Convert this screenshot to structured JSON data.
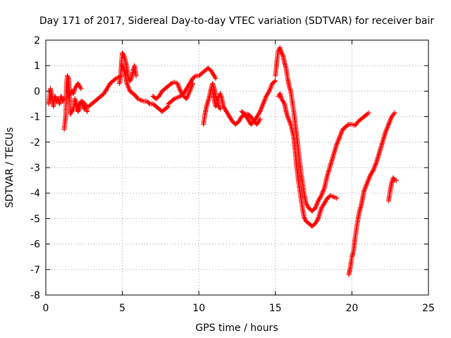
{
  "chart_data": {
    "type": "scatter",
    "title": "Day 171 of 2017, Sidereal Day-to-day VTEC variation (SDTVAR) for receiver bair",
    "xlabel": "GPS time / hours",
    "ylabel": "SDTVAR / TECUs",
    "xlim": [
      0,
      25
    ],
    "ylim": [
      -8,
      2
    ],
    "x_ticks": [
      0,
      5,
      10,
      15,
      20,
      25
    ],
    "y_ticks": [
      2,
      1,
      0,
      -1,
      -2,
      -3,
      -4,
      -5,
      -6,
      -7,
      -8
    ],
    "x_tick_labels": [
      "0",
      "5",
      "10",
      "15",
      "20",
      "25"
    ],
    "y_tick_labels": [
      "2",
      "1",
      "0",
      "-1",
      "-2",
      "-3",
      "-4",
      "-5",
      "-6",
      "-7",
      "-8"
    ],
    "grid": true,
    "legend": "none",
    "marker": "+",
    "color": "#ff0000",
    "segments": [
      [
        [
          0.2,
          -0.5
        ],
        [
          0.3,
          0.1
        ],
        [
          0.4,
          -0.2
        ],
        [
          0.5,
          -0.6
        ],
        [
          0.6,
          -0.2
        ],
        [
          0.7,
          -0.4
        ],
        [
          0.8,
          -0.3
        ],
        [
          0.9,
          -0.5
        ],
        [
          1.0,
          -0.2
        ],
        [
          1.1,
          -0.4
        ],
        [
          1.2,
          -0.3
        ]
      ],
      [
        [
          1.2,
          -1.5
        ],
        [
          1.3,
          -1.0
        ],
        [
          1.35,
          0.2
        ],
        [
          1.4,
          0.6
        ],
        [
          1.5,
          0.5
        ],
        [
          1.55,
          -0.2
        ],
        [
          1.6,
          -0.9
        ],
        [
          1.7,
          -0.8
        ],
        [
          1.8,
          -0.7
        ],
        [
          1.9,
          -0.3
        ],
        [
          2.0,
          -0.5
        ],
        [
          2.1,
          -0.8
        ],
        [
          2.2,
          -0.7
        ],
        [
          2.3,
          -0.4
        ],
        [
          2.4,
          -0.5
        ],
        [
          2.5,
          -0.7
        ],
        [
          2.6,
          -0.6
        ],
        [
          2.7,
          -0.8
        ]
      ],
      [
        [
          1.5,
          -0.2
        ],
        [
          1.6,
          -0.1
        ],
        [
          1.7,
          0.0
        ],
        [
          1.8,
          -0.1
        ],
        [
          1.9,
          0.1
        ],
        [
          2.0,
          0.2
        ],
        [
          2.1,
          0.3
        ],
        [
          2.2,
          0.2
        ],
        [
          2.3,
          0.1
        ]
      ],
      [
        [
          2.0,
          -0.7
        ],
        [
          2.2,
          -0.5
        ],
        [
          2.4,
          -0.4
        ],
        [
          2.6,
          -0.55
        ],
        [
          2.8,
          -0.6
        ],
        [
          3.0,
          -0.5
        ],
        [
          3.2,
          -0.4
        ],
        [
          3.4,
          -0.3
        ],
        [
          3.6,
          -0.2
        ],
        [
          3.8,
          -0.1
        ],
        [
          4.0,
          0.1
        ],
        [
          4.2,
          0.3
        ],
        [
          4.4,
          0.4
        ],
        [
          4.6,
          0.5
        ],
        [
          4.8,
          0.55
        ],
        [
          4.9,
          0.6
        ]
      ],
      [
        [
          4.8,
          0.3
        ],
        [
          4.85,
          0.4
        ],
        [
          4.9,
          0.7
        ],
        [
          4.95,
          1.2
        ],
        [
          5.0,
          1.5
        ],
        [
          5.1,
          1.4
        ],
        [
          5.2,
          1.2
        ],
        [
          5.3,
          0.9
        ],
        [
          5.4,
          0.5
        ],
        [
          5.5,
          0.4
        ],
        [
          5.6,
          0.5
        ],
        [
          5.7,
          0.8
        ],
        [
          5.8,
          1.0
        ],
        [
          5.9,
          0.6
        ]
      ],
      [
        [
          5.0,
          1.0
        ],
        [
          5.1,
          0.9
        ],
        [
          5.2,
          0.6
        ],
        [
          5.3,
          0.3
        ],
        [
          5.5,
          0.0
        ],
        [
          5.7,
          -0.1
        ],
        [
          5.9,
          -0.2
        ],
        [
          6.0,
          -0.3
        ],
        [
          6.2,
          -0.35
        ],
        [
          6.4,
          -0.4
        ],
        [
          6.6,
          -0.4
        ],
        [
          6.8,
          -0.5
        ],
        [
          7.0,
          -0.5
        ],
        [
          7.2,
          -0.6
        ],
        [
          7.4,
          -0.7
        ],
        [
          7.6,
          -0.8
        ],
        [
          7.8,
          -0.7
        ],
        [
          8.0,
          -0.6
        ]
      ],
      [
        [
          7.0,
          -0.2
        ],
        [
          7.2,
          -0.3
        ],
        [
          7.4,
          -0.2
        ],
        [
          7.6,
          0.0
        ],
        [
          7.8,
          0.1
        ],
        [
          8.0,
          0.2
        ],
        [
          8.2,
          0.3
        ],
        [
          8.4,
          0.35
        ],
        [
          8.6,
          0.3
        ],
        [
          8.8,
          0.0
        ],
        [
          9.0,
          -0.2
        ],
        [
          9.2,
          -0.3
        ],
        [
          9.4,
          0.0
        ],
        [
          9.6,
          0.3
        ]
      ],
      [
        [
          8.0,
          -0.5
        ],
        [
          8.2,
          -0.4
        ],
        [
          8.4,
          -0.3
        ],
        [
          8.6,
          -0.25
        ],
        [
          8.8,
          -0.2
        ],
        [
          9.0,
          -0.1
        ],
        [
          9.2,
          0.1
        ],
        [
          9.4,
          0.3
        ],
        [
          9.6,
          0.5
        ],
        [
          9.8,
          0.6
        ],
        [
          10.0,
          0.6
        ],
        [
          10.2,
          0.7
        ],
        [
          10.4,
          0.8
        ],
        [
          10.6,
          0.9
        ],
        [
          10.8,
          0.8
        ],
        [
          11.0,
          0.6
        ],
        [
          11.1,
          0.5
        ]
      ],
      [
        [
          10.3,
          -1.3
        ],
        [
          10.4,
          -0.9
        ],
        [
          10.5,
          -0.6
        ],
        [
          10.6,
          -0.4
        ],
        [
          10.7,
          -0.2
        ],
        [
          10.8,
          0.1
        ],
        [
          10.9,
          0.3
        ],
        [
          11.0,
          0.1
        ],
        [
          11.1,
          -0.2
        ],
        [
          11.2,
          -0.4
        ],
        [
          11.3,
          -0.6
        ],
        [
          11.4,
          -0.7
        ]
      ],
      [
        [
          10.9,
          0.0
        ],
        [
          11.0,
          -0.3
        ],
        [
          11.1,
          -0.6
        ],
        [
          11.2,
          -0.5
        ],
        [
          11.3,
          -0.2
        ],
        [
          11.4,
          -0.1
        ],
        [
          11.5,
          -0.3
        ],
        [
          11.6,
          -0.6
        ],
        [
          11.8,
          -0.8
        ],
        [
          12.0,
          -1.0
        ],
        [
          12.2,
          -1.2
        ],
        [
          12.4,
          -1.3
        ],
        [
          12.6,
          -1.2
        ],
        [
          12.8,
          -1.0
        ],
        [
          13.0,
          -0.9
        ],
        [
          13.2,
          -0.9
        ],
        [
          13.4,
          -1.0
        ],
        [
          13.6,
          -1.2
        ],
        [
          13.8,
          -1.3
        ],
        [
          14.0,
          -1.1
        ]
      ],
      [
        [
          12.8,
          -0.8
        ],
        [
          13.0,
          -0.9
        ],
        [
          13.2,
          -1.1
        ],
        [
          13.4,
          -1.3
        ],
        [
          13.6,
          -1.2
        ],
        [
          13.8,
          -1.0
        ],
        [
          14.0,
          -0.8
        ],
        [
          14.2,
          -0.5
        ],
        [
          14.4,
          -0.2
        ],
        [
          14.6,
          0.0
        ],
        [
          14.8,
          0.3
        ],
        [
          15.0,
          0.4
        ]
      ],
      [
        [
          15.0,
          0.6
        ],
        [
          15.1,
          1.2
        ],
        [
          15.2,
          1.6
        ],
        [
          15.3,
          1.7
        ],
        [
          15.4,
          1.5
        ],
        [
          15.5,
          1.4
        ],
        [
          15.6,
          1.1
        ],
        [
          15.7,
          0.9
        ],
        [
          15.8,
          0.5
        ],
        [
          15.9,
          0.2
        ],
        [
          16.0,
          0.0
        ],
        [
          16.1,
          -0.4
        ],
        [
          16.2,
          -0.8
        ],
        [
          16.3,
          -1.3
        ],
        [
          16.4,
          -1.8
        ],
        [
          16.5,
          -2.3
        ],
        [
          16.6,
          -2.8
        ],
        [
          16.7,
          -3.3
        ],
        [
          16.8,
          -3.7
        ],
        [
          16.9,
          -4.1
        ],
        [
          17.0,
          -4.4
        ],
        [
          17.2,
          -4.6
        ],
        [
          17.4,
          -4.7
        ],
        [
          17.6,
          -4.6
        ],
        [
          17.8,
          -4.3
        ],
        [
          18.0,
          -4.1
        ],
        [
          18.2,
          -3.8
        ],
        [
          18.4,
          -3.3
        ],
        [
          18.6,
          -2.9
        ],
        [
          18.8,
          -2.5
        ],
        [
          19.0,
          -2.1
        ],
        [
          19.2,
          -1.8
        ],
        [
          19.4,
          -1.5
        ],
        [
          19.6,
          -1.4
        ],
        [
          19.8,
          -1.3
        ],
        [
          20.0,
          -1.3
        ],
        [
          20.2,
          -1.35
        ],
        [
          20.4,
          -1.2
        ],
        [
          20.6,
          -1.1
        ],
        [
          20.8,
          -1.0
        ],
        [
          21.0,
          -0.9
        ],
        [
          21.1,
          -0.85
        ]
      ],
      [
        [
          15.2,
          -0.2
        ],
        [
          15.3,
          -0.1
        ],
        [
          15.4,
          -0.3
        ],
        [
          15.5,
          -0.4
        ],
        [
          15.6,
          -0.5
        ],
        [
          15.7,
          -0.8
        ],
        [
          15.8,
          -1.0
        ],
        [
          16.0,
          -1.3
        ],
        [
          16.2,
          -1.8
        ],
        [
          16.3,
          -2.4
        ],
        [
          16.4,
          -3.0
        ],
        [
          16.5,
          -3.5
        ],
        [
          16.6,
          -3.9
        ],
        [
          16.7,
          -4.3
        ],
        [
          16.8,
          -4.7
        ],
        [
          16.9,
          -5.0
        ],
        [
          17.0,
          -5.1
        ],
        [
          17.2,
          -5.2
        ],
        [
          17.4,
          -5.3
        ],
        [
          17.6,
          -5.2
        ],
        [
          17.8,
          -5.0
        ],
        [
          18.0,
          -4.6
        ],
        [
          18.2,
          -4.4
        ],
        [
          18.4,
          -4.2
        ],
        [
          18.6,
          -4.1
        ],
        [
          18.8,
          -4.15
        ],
        [
          19.0,
          -4.2
        ]
      ],
      [
        [
          19.8,
          -7.2
        ],
        [
          19.9,
          -6.9
        ],
        [
          20.0,
          -6.5
        ],
        [
          20.1,
          -6.3
        ],
        [
          20.2,
          -5.8
        ],
        [
          20.3,
          -5.4
        ],
        [
          20.4,
          -5.0
        ],
        [
          20.5,
          -4.7
        ],
        [
          20.6,
          -4.5
        ],
        [
          20.7,
          -4.2
        ],
        [
          20.8,
          -3.9
        ],
        [
          21.0,
          -3.6
        ],
        [
          21.2,
          -3.3
        ],
        [
          21.4,
          -3.1
        ],
        [
          21.6,
          -2.8
        ],
        [
          21.8,
          -2.4
        ],
        [
          22.0,
          -2.0
        ],
        [
          22.2,
          -1.6
        ],
        [
          22.4,
          -1.3
        ],
        [
          22.6,
          -1.0
        ],
        [
          22.8,
          -0.85
        ]
      ],
      [
        [
          22.4,
          -4.3
        ],
        [
          22.5,
          -3.9
        ],
        [
          22.6,
          -3.6
        ],
        [
          22.7,
          -3.4
        ],
        [
          22.8,
          -3.5
        ],
        [
          22.9,
          -3.5
        ]
      ]
    ]
  }
}
